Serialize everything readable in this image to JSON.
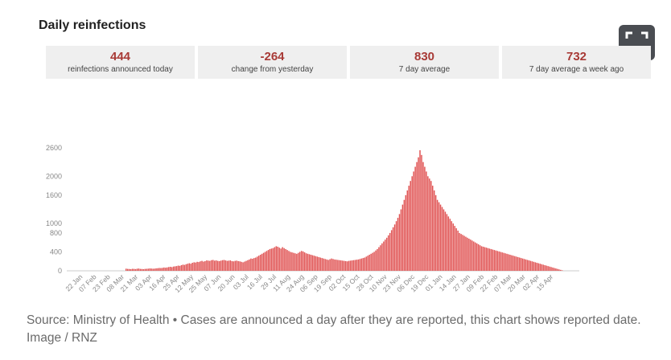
{
  "header": {
    "title": "Daily reinfections"
  },
  "stats": [
    {
      "value": "444",
      "label": "reinfections announced today"
    },
    {
      "value": "-264",
      "label": "change from yesterday"
    },
    {
      "value": "830",
      "label": "7 day average"
    },
    {
      "value": "732",
      "label": "7 day average a week ago"
    }
  ],
  "icons": {
    "expand": "expand-icon"
  },
  "colors": {
    "bar": "#e05252",
    "stat_value": "#a83a36",
    "expand_bg": "#4a4d52"
  },
  "caption": "Source: Ministry of Health • Cases are announced a day after they are reported, this chart shows reported date. Image / RNZ",
  "chart_data": {
    "type": "bar",
    "title": "Daily reinfections",
    "xlabel": "",
    "ylabel": "",
    "ylim": [
      0,
      2600
    ],
    "yticks": [
      0,
      400,
      800,
      1000,
      1600,
      2000,
      2600
    ],
    "xticks": [
      "22 Jan",
      "07 Feb",
      "23 Feb",
      "08 Mar",
      "21 Mar",
      "03 Apr",
      "16 Apr",
      "25 Apr",
      "12 May",
      "25 May",
      "07 Jun",
      "20 Jun",
      "03 Jul",
      "16 Jul",
      "29 Jul",
      "11 Aug",
      "24 Aug",
      "06 Sep",
      "19 Sep",
      "02 Oct",
      "15 Oct",
      "28 Oct",
      "10 Nov",
      "23 Nov",
      "06 Dec",
      "19 Dec",
      "01 Jan",
      "14 Jan",
      "27 Jan",
      "09 Feb",
      "22 Feb",
      "07 Mar",
      "20 Mar",
      "02 Apr",
      "15 Apr"
    ],
    "grid": false,
    "legend": "none",
    "series": [
      {
        "values": [
          45,
          40,
          38,
          35,
          42,
          40,
          36,
          44,
          48,
          40,
          38,
          35,
          40,
          42,
          45,
          50,
          48,
          44,
          46,
          52,
          55,
          60,
          58,
          62,
          70,
          66,
          72,
          80,
          85,
          78,
          90,
          95,
          100,
          110,
          105,
          120,
          130,
          125,
          140,
          150,
          160,
          150,
          170,
          180,
          175,
          190,
          185,
          200,
          210,
          195,
          205,
          220,
          215,
          210,
          225,
          230,
          215,
          220,
          210,
          205,
          215,
          225,
          230,
          220,
          210,
          215,
          220,
          205,
          200,
          210,
          215,
          205,
          200,
          190,
          180,
          195,
          210,
          225,
          240,
          260,
          255,
          270,
          280,
          300,
          320,
          340,
          360,
          380,
          400,
          420,
          440,
          460,
          470,
          480,
          500,
          520,
          510,
          490,
          470,
          500,
          480,
          460,
          440,
          420,
          400,
          390,
          380,
          370,
          360,
          380,
          400,
          420,
          410,
          390,
          370,
          360,
          350,
          340,
          330,
          320,
          310,
          300,
          290,
          280,
          270,
          260,
          250,
          240,
          230,
          245,
          260,
          250,
          240,
          235,
          230,
          225,
          220,
          215,
          210,
          205,
          200,
          210,
          215,
          220,
          225,
          230,
          235,
          240,
          250,
          260,
          270,
          280,
          300,
          320,
          340,
          360,
          380,
          400,
          430,
          460,
          500,
          540,
          580,
          620,
          660,
          700,
          750,
          800,
          860,
          920,
          980,
          1050,
          1120,
          1200,
          1300,
          1400,
          1500,
          1600,
          1700,
          1800,
          1900,
          2000,
          2100,
          2200,
          2300,
          2400,
          2550,
          2450,
          2300,
          2200,
          2100,
          2000,
          1950,
          1900,
          1800,
          1700,
          1600,
          1500,
          1450,
          1400,
          1350,
          1300,
          1250,
          1200,
          1150,
          1100,
          1050,
          1000,
          950,
          900,
          850,
          800,
          780,
          760,
          740,
          720,
          700,
          680,
          660,
          640,
          620,
          600,
          580,
          560,
          540,
          520,
          510,
          500,
          490,
          480,
          470,
          460,
          450,
          440,
          430,
          420,
          410,
          400,
          390,
          380,
          370,
          360,
          350,
          340,
          330,
          320,
          310,
          300,
          290,
          280,
          270,
          260,
          250,
          240,
          230,
          220,
          210,
          200,
          190,
          180,
          170,
          160,
          150,
          140,
          130,
          120,
          110,
          100,
          90,
          80,
          70,
          60,
          50,
          40,
          30,
          20,
          10
        ]
      }
    ]
  }
}
